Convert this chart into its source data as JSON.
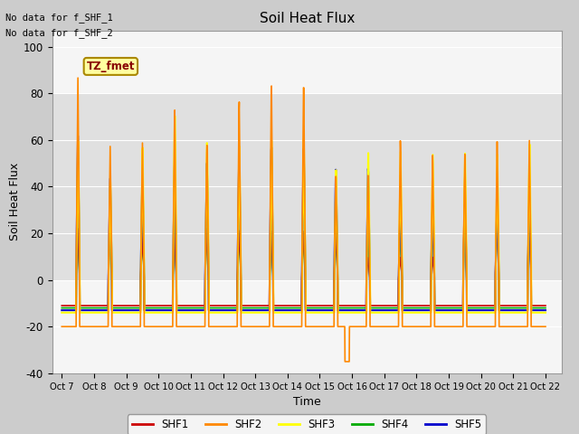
{
  "title": "Soil Heat Flux",
  "ylabel": "Soil Heat Flux",
  "xlabel": "Time",
  "ylim": [
    -40,
    107
  ],
  "annotation_top_line1": "No data for f_SHF_1",
  "annotation_top_line2": "No data for f_SHF_2",
  "tz_label": "TZ_fmet",
  "x_tick_labels": [
    "Oct 7",
    "Oct 8",
    "Oct 9",
    "Oct 10",
    "Oct 11",
    "Oct 12",
    "Oct 13",
    "Oct 14",
    "Oct 15",
    "Oct 16",
    "Oct 17",
    "Oct 18",
    "Oct 19",
    "Oct 20",
    "Oct 21",
    "Oct 22"
  ],
  "yticks": [
    -40,
    -20,
    0,
    20,
    40,
    60,
    80,
    100
  ],
  "shf_colors": {
    "SHF1": "#cc0000",
    "SHF2": "#ff8800",
    "SHF3": "#ffff00",
    "SHF4": "#00aa00",
    "SHF5": "#0000cc"
  },
  "fig_bg": "#cccccc",
  "plot_bg_light": "#f5f5f5",
  "plot_bg_dark": "#e0e0e0",
  "night_vals": {
    "SHF1": -11,
    "SHF2": -20,
    "SHF3": -14,
    "SHF4": -12,
    "SHF5": -13
  },
  "day_peaks": {
    "SHF1": [
      22,
      26,
      20,
      20,
      22,
      22,
      22,
      22,
      22,
      10,
      10,
      10,
      45,
      30,
      30
    ],
    "SHF2": [
      87,
      58,
      60,
      75,
      60,
      80,
      88,
      88,
      47,
      47,
      62,
      55,
      55,
      60,
      60
    ],
    "SHF3": [
      62,
      44,
      60,
      75,
      62,
      60,
      62,
      62,
      48,
      55,
      55,
      54,
      55,
      55,
      60
    ],
    "SHF4": [
      22,
      26,
      22,
      24,
      23,
      22,
      22,
      22,
      22,
      22,
      22,
      28,
      30,
      30,
      35
    ],
    "SHF5": [
      62,
      44,
      48,
      52,
      52,
      56,
      60,
      60,
      50,
      50,
      33,
      33,
      33,
      33,
      35
    ]
  },
  "special_dip_day": 8,
  "special_dip_val": -35,
  "pts_per_day": 144,
  "n_days": 15
}
